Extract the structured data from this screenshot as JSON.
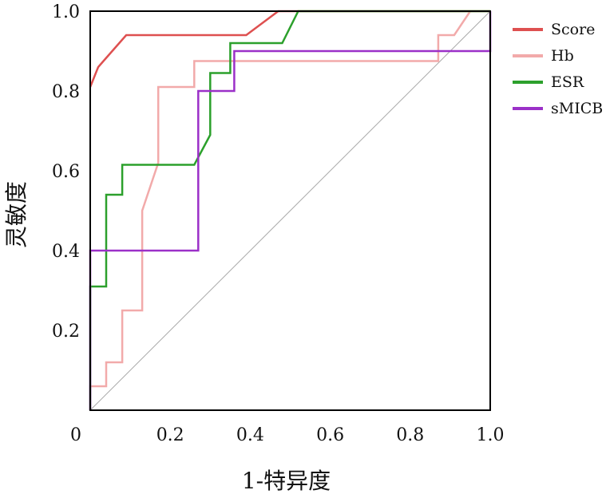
{
  "chart_data": {
    "type": "line",
    "title": "",
    "xlabel": "1-特异度",
    "ylabel": "灵敏度",
    "xlim": [
      0,
      1
    ],
    "ylim": [
      0,
      1
    ],
    "x_ticks": [
      "0",
      "0.2",
      "0.4",
      "0.6",
      "0.8",
      "1.0"
    ],
    "y_ticks": [
      "0.2",
      "0.4",
      "0.6",
      "0.8",
      "1.0"
    ],
    "grid": false,
    "legend_position": "right",
    "diagonal_reference_line": true,
    "diagonal_color": "#a8a8a8",
    "series": [
      {
        "name": "Score",
        "color": "#de5050",
        "points": [
          [
            0,
            0.81
          ],
          [
            0.02,
            0.86
          ],
          [
            0.09,
            0.94
          ],
          [
            0.39,
            0.94
          ],
          [
            0.47,
            1.0
          ],
          [
            1.0,
            1.0
          ]
        ]
      },
      {
        "name": "Hb",
        "color": "#f2aaaa",
        "points": [
          [
            0,
            0.0
          ],
          [
            0,
            0.06
          ],
          [
            0.04,
            0.06
          ],
          [
            0.04,
            0.12
          ],
          [
            0.08,
            0.12
          ],
          [
            0.08,
            0.25
          ],
          [
            0.13,
            0.25
          ],
          [
            0.13,
            0.5
          ],
          [
            0.17,
            0.62
          ],
          [
            0.17,
            0.81
          ],
          [
            0.26,
            0.81
          ],
          [
            0.26,
            0.875
          ],
          [
            0.87,
            0.875
          ],
          [
            0.87,
            0.94
          ],
          [
            0.91,
            0.94
          ],
          [
            0.95,
            1.0
          ],
          [
            1.0,
            1.0
          ]
        ]
      },
      {
        "name": "ESR",
        "color": "#2ca02c",
        "points": [
          [
            0,
            0.0
          ],
          [
            0,
            0.31
          ],
          [
            0.04,
            0.31
          ],
          [
            0.04,
            0.54
          ],
          [
            0.08,
            0.54
          ],
          [
            0.08,
            0.615
          ],
          [
            0.26,
            0.615
          ],
          [
            0.3,
            0.69
          ],
          [
            0.3,
            0.845
          ],
          [
            0.35,
            0.845
          ],
          [
            0.35,
            0.92
          ],
          [
            0.48,
            0.92
          ],
          [
            0.52,
            1.0
          ],
          [
            1.0,
            1.0
          ]
        ]
      },
      {
        "name": "sMICB",
        "color": "#9b30c8",
        "points": [
          [
            0,
            0.0
          ],
          [
            0,
            0.4
          ],
          [
            0.27,
            0.4
          ],
          [
            0.27,
            0.8
          ],
          [
            0.36,
            0.8
          ],
          [
            0.36,
            0.9
          ],
          [
            1.0,
            0.9
          ],
          [
            1.0,
            1.0
          ]
        ]
      }
    ]
  }
}
